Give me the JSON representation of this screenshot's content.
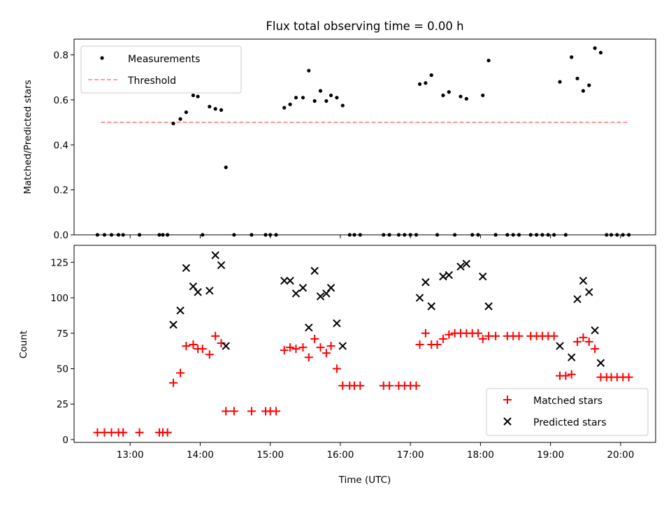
{
  "chart_data": [
    {
      "type": "scatter",
      "title": "Flux total observing time = 0.00 h",
      "ylabel": "Matched/Predicted stars",
      "xlim": [
        "12:12",
        "20:30"
      ],
      "ylim": [
        0,
        0.87
      ],
      "yticks": [
        "0.0",
        "0.2",
        "0.4",
        "0.6",
        "0.8"
      ],
      "legend_position": "upper-left",
      "series": [
        {
          "name": "Measurements",
          "color": "#000000",
          "marker": "dot",
          "points": [
            [
              "12:32",
              0
            ],
            [
              "12:38",
              0
            ],
            [
              "12:44",
              0
            ],
            [
              "12:50",
              0
            ],
            [
              "12:54",
              0
            ],
            [
              "13:08",
              0
            ],
            [
              "13:25",
              0
            ],
            [
              "13:28",
              0
            ],
            [
              "13:32",
              0
            ],
            [
              "13:37",
              0.495
            ],
            [
              "13:43",
              0.515
            ],
            [
              "13:48",
              0.545
            ],
            [
              "13:54",
              0.62
            ],
            [
              "13:58",
              0.615
            ],
            [
              "14:02",
              0
            ],
            [
              "14:08",
              0.57
            ],
            [
              "14:13",
              0.56
            ],
            [
              "14:18",
              0.555
            ],
            [
              "14:22",
              0.3
            ],
            [
              "14:29",
              0
            ],
            [
              "14:44",
              0
            ],
            [
              "14:56",
              0
            ],
            [
              "15:00",
              0
            ],
            [
              "15:05",
              0
            ],
            [
              "15:12",
              0.565
            ],
            [
              "15:17",
              0.58
            ],
            [
              "15:22",
              0.61
            ],
            [
              "15:28",
              0.61
            ],
            [
              "15:33",
              0.73
            ],
            [
              "15:38",
              0.595
            ],
            [
              "15:43",
              0.64
            ],
            [
              "15:48",
              0.595
            ],
            [
              "15:52",
              0.62
            ],
            [
              "15:57",
              0.61
            ],
            [
              "16:02",
              0.575
            ],
            [
              "16:08",
              0
            ],
            [
              "16:12",
              0
            ],
            [
              "16:17",
              0
            ],
            [
              "16:37",
              0
            ],
            [
              "16:42",
              0
            ],
            [
              "16:50",
              0
            ],
            [
              "16:55",
              0
            ],
            [
              "17:00",
              0
            ],
            [
              "17:05",
              0
            ],
            [
              "17:08",
              0.67
            ],
            [
              "17:13",
              0.675
            ],
            [
              "17:18",
              0.71
            ],
            [
              "17:23",
              0
            ],
            [
              "17:28",
              0.62
            ],
            [
              "17:33",
              0.635
            ],
            [
              "17:38",
              0
            ],
            [
              "17:43",
              0.615
            ],
            [
              "17:48",
              0.605
            ],
            [
              "17:53",
              0
            ],
            [
              "17:58",
              0
            ],
            [
              "18:02",
              0.62
            ],
            [
              "18:07",
              0.775
            ],
            [
              "18:13",
              0
            ],
            [
              "18:23",
              0
            ],
            [
              "18:28",
              0
            ],
            [
              "18:33",
              0
            ],
            [
              "18:43",
              0
            ],
            [
              "18:48",
              0
            ],
            [
              "18:53",
              0
            ],
            [
              "18:58",
              0
            ],
            [
              "19:03",
              0
            ],
            [
              "19:08",
              0.68
            ],
            [
              "19:13",
              0
            ],
            [
              "19:18",
              0.79
            ],
            [
              "19:23",
              0.695
            ],
            [
              "19:28",
              0.64
            ],
            [
              "19:33",
              0.665
            ],
            [
              "19:38",
              0.83
            ],
            [
              "19:43",
              0.81
            ],
            [
              "19:48",
              0
            ],
            [
              "19:52",
              0
            ],
            [
              "19:57",
              0
            ],
            [
              "20:02",
              0
            ],
            [
              "20:07",
              0
            ]
          ]
        },
        {
          "name": "Threshold",
          "color": "#ff7f7f",
          "line_style": "dashed",
          "points": [
            [
              "12:35",
              0.5
            ],
            [
              "20:07",
              0.5
            ]
          ]
        }
      ]
    },
    {
      "type": "scatter",
      "xlabel": "Time (UTC)",
      "ylabel": "Count",
      "xlim": [
        "12:12",
        "20:30"
      ],
      "ylim": [
        -2,
        137
      ],
      "yticks": [
        "0",
        "25",
        "50",
        "75",
        "100",
        "125"
      ],
      "xticks": [
        "13:00",
        "14:00",
        "15:00",
        "16:00",
        "17:00",
        "18:00",
        "19:00",
        "20:00"
      ],
      "legend_position": "lower-right",
      "series": [
        {
          "name": "Matched stars",
          "color": "#ff0000",
          "marker": "plus",
          "points": [
            [
              "12:32",
              5
            ],
            [
              "12:38",
              5
            ],
            [
              "12:44",
              5
            ],
            [
              "12:50",
              5
            ],
            [
              "12:54",
              5
            ],
            [
              "13:08",
              5
            ],
            [
              "13:25",
              5
            ],
            [
              "13:28",
              5
            ],
            [
              "13:32",
              5
            ],
            [
              "13:37",
              40
            ],
            [
              "13:43",
              47
            ],
            [
              "13:48",
              66
            ],
            [
              "13:54",
              67
            ],
            [
              "13:58",
              64
            ],
            [
              "14:02",
              64
            ],
            [
              "14:08",
              60
            ],
            [
              "14:13",
              73
            ],
            [
              "14:18",
              68
            ],
            [
              "14:22",
              20
            ],
            [
              "14:29",
              20
            ],
            [
              "14:44",
              20
            ],
            [
              "14:56",
              20
            ],
            [
              "15:00",
              20
            ],
            [
              "15:05",
              20
            ],
            [
              "15:12",
              63
            ],
            [
              "15:17",
              65
            ],
            [
              "15:22",
              64
            ],
            [
              "15:28",
              65
            ],
            [
              "15:33",
              58
            ],
            [
              "15:38",
              71
            ],
            [
              "15:43",
              65
            ],
            [
              "15:48",
              61
            ],
            [
              "15:52",
              66
            ],
            [
              "15:57",
              50
            ],
            [
              "16:02",
              38
            ],
            [
              "16:08",
              38
            ],
            [
              "16:12",
              38
            ],
            [
              "16:17",
              38
            ],
            [
              "16:37",
              38
            ],
            [
              "16:42",
              38
            ],
            [
              "16:50",
              38
            ],
            [
              "16:55",
              38
            ],
            [
              "17:00",
              38
            ],
            [
              "17:05",
              38
            ],
            [
              "17:08",
              67
            ],
            [
              "17:13",
              75
            ],
            [
              "17:18",
              67
            ],
            [
              "17:23",
              67
            ],
            [
              "17:28",
              71
            ],
            [
              "17:33",
              74
            ],
            [
              "17:38",
              75
            ],
            [
              "17:43",
              75
            ],
            [
              "17:48",
              75
            ],
            [
              "17:53",
              75
            ],
            [
              "17:58",
              75
            ],
            [
              "18:02",
              71
            ],
            [
              "18:07",
              73
            ],
            [
              "18:13",
              73
            ],
            [
              "18:23",
              73
            ],
            [
              "18:28",
              73
            ],
            [
              "18:33",
              73
            ],
            [
              "18:43",
              73
            ],
            [
              "18:48",
              73
            ],
            [
              "18:53",
              73
            ],
            [
              "18:58",
              73
            ],
            [
              "19:03",
              73
            ],
            [
              "19:08",
              45
            ],
            [
              "19:13",
              45
            ],
            [
              "19:18",
              46
            ],
            [
              "19:23",
              69
            ],
            [
              "19:28",
              72
            ],
            [
              "19:33",
              69
            ],
            [
              "19:38",
              64
            ],
            [
              "19:43",
              44
            ],
            [
              "19:48",
              44
            ],
            [
              "19:52",
              44
            ],
            [
              "19:57",
              44
            ],
            [
              "20:02",
              44
            ],
            [
              "20:07",
              44
            ]
          ]
        },
        {
          "name": "Predicted stars",
          "color": "#000000",
          "marker": "x",
          "points": [
            [
              "13:37",
              81
            ],
            [
              "13:43",
              91
            ],
            [
              "13:48",
              121
            ],
            [
              "13:54",
              108
            ],
            [
              "13:58",
              104
            ],
            [
              "14:08",
              105
            ],
            [
              "14:13",
              130
            ],
            [
              "14:18",
              123
            ],
            [
              "14:22",
              66
            ],
            [
              "15:12",
              112
            ],
            [
              "15:17",
              112
            ],
            [
              "15:22",
              103
            ],
            [
              "15:28",
              107
            ],
            [
              "15:33",
              79
            ],
            [
              "15:38",
              119
            ],
            [
              "15:43",
              101
            ],
            [
              "15:48",
              103
            ],
            [
              "15:52",
              107
            ],
            [
              "15:57",
              82
            ],
            [
              "16:02",
              66
            ],
            [
              "17:08",
              100
            ],
            [
              "17:13",
              111
            ],
            [
              "17:18",
              94
            ],
            [
              "17:28",
              115
            ],
            [
              "17:33",
              116
            ],
            [
              "17:43",
              122
            ],
            [
              "17:48",
              124
            ],
            [
              "18:02",
              115
            ],
            [
              "18:07",
              94
            ],
            [
              "19:08",
              66
            ],
            [
              "19:18",
              58
            ],
            [
              "19:23",
              99
            ],
            [
              "19:28",
              112
            ],
            [
              "19:33",
              104
            ],
            [
              "19:38",
              77
            ],
            [
              "19:43",
              54
            ]
          ]
        }
      ]
    }
  ]
}
